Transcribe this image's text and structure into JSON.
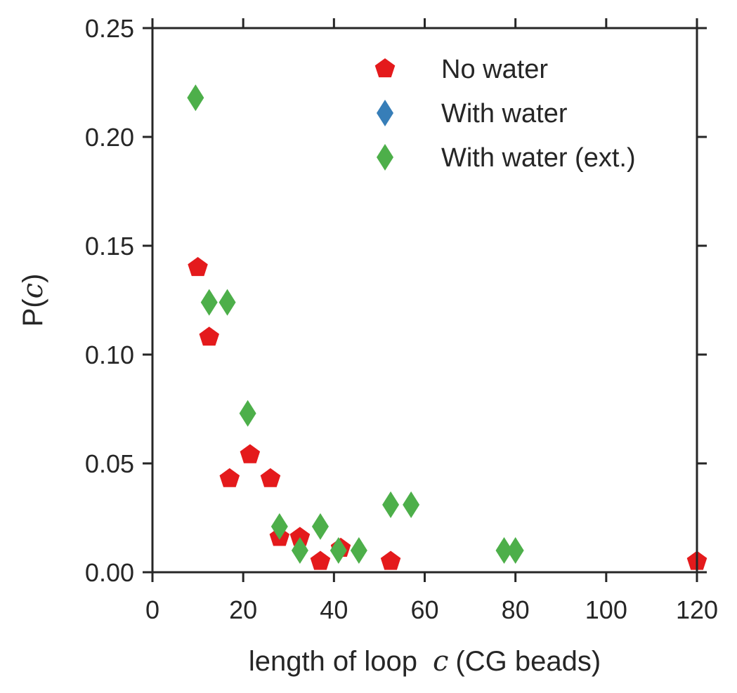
{
  "chart_data": {
    "type": "scatter",
    "title": "",
    "xlabel_prefix": "length of loop",
    "xlabel_var": "c",
    "xlabel_suffix": "(CG beads)",
    "ylabel_prefix": "P(",
    "ylabel_var": "c",
    "ylabel_suffix": ")",
    "xlim": [
      0,
      120
    ],
    "ylim": [
      0,
      0.25
    ],
    "x_ticks": [
      0,
      20,
      40,
      60,
      80,
      100,
      120
    ],
    "y_ticks": [
      0.0,
      0.05,
      0.1,
      0.15,
      0.2,
      0.25
    ],
    "x_tick_labels": [
      "0",
      "20",
      "40",
      "60",
      "80",
      "100",
      "120"
    ],
    "y_tick_labels": [
      "0.00",
      "0.05",
      "0.10",
      "0.15",
      "0.20",
      "0.25"
    ],
    "grid": false,
    "legend_position": "top-right",
    "series": [
      {
        "name": "No water",
        "marker": "pentagon",
        "color": "#e41a1c",
        "points": [
          [
            10,
            0.14
          ],
          [
            12.5,
            0.108
          ],
          [
            17,
            0.043
          ],
          [
            21.5,
            0.054
          ],
          [
            26,
            0.043
          ],
          [
            28,
            0.016
          ],
          [
            32.5,
            0.016
          ],
          [
            37,
            0.005
          ],
          [
            41.5,
            0.011
          ],
          [
            52.5,
            0.005
          ],
          [
            120,
            0.005
          ]
        ]
      },
      {
        "name": "With water",
        "marker": "diamond",
        "color": "#377eb8",
        "points": []
      },
      {
        "name": "With water (ext.)",
        "marker": "diamond",
        "color": "#4daf4a",
        "points": [
          [
            9.5,
            0.218
          ],
          [
            12.5,
            0.124
          ],
          [
            16.5,
            0.124
          ],
          [
            21,
            0.073
          ],
          [
            28,
            0.021
          ],
          [
            32.5,
            0.01
          ],
          [
            37,
            0.021
          ],
          [
            41,
            0.01
          ],
          [
            45.5,
            0.01
          ],
          [
            52.5,
            0.031
          ],
          [
            57,
            0.031
          ],
          [
            77.5,
            0.01
          ],
          [
            80,
            0.01
          ]
        ]
      }
    ]
  }
}
